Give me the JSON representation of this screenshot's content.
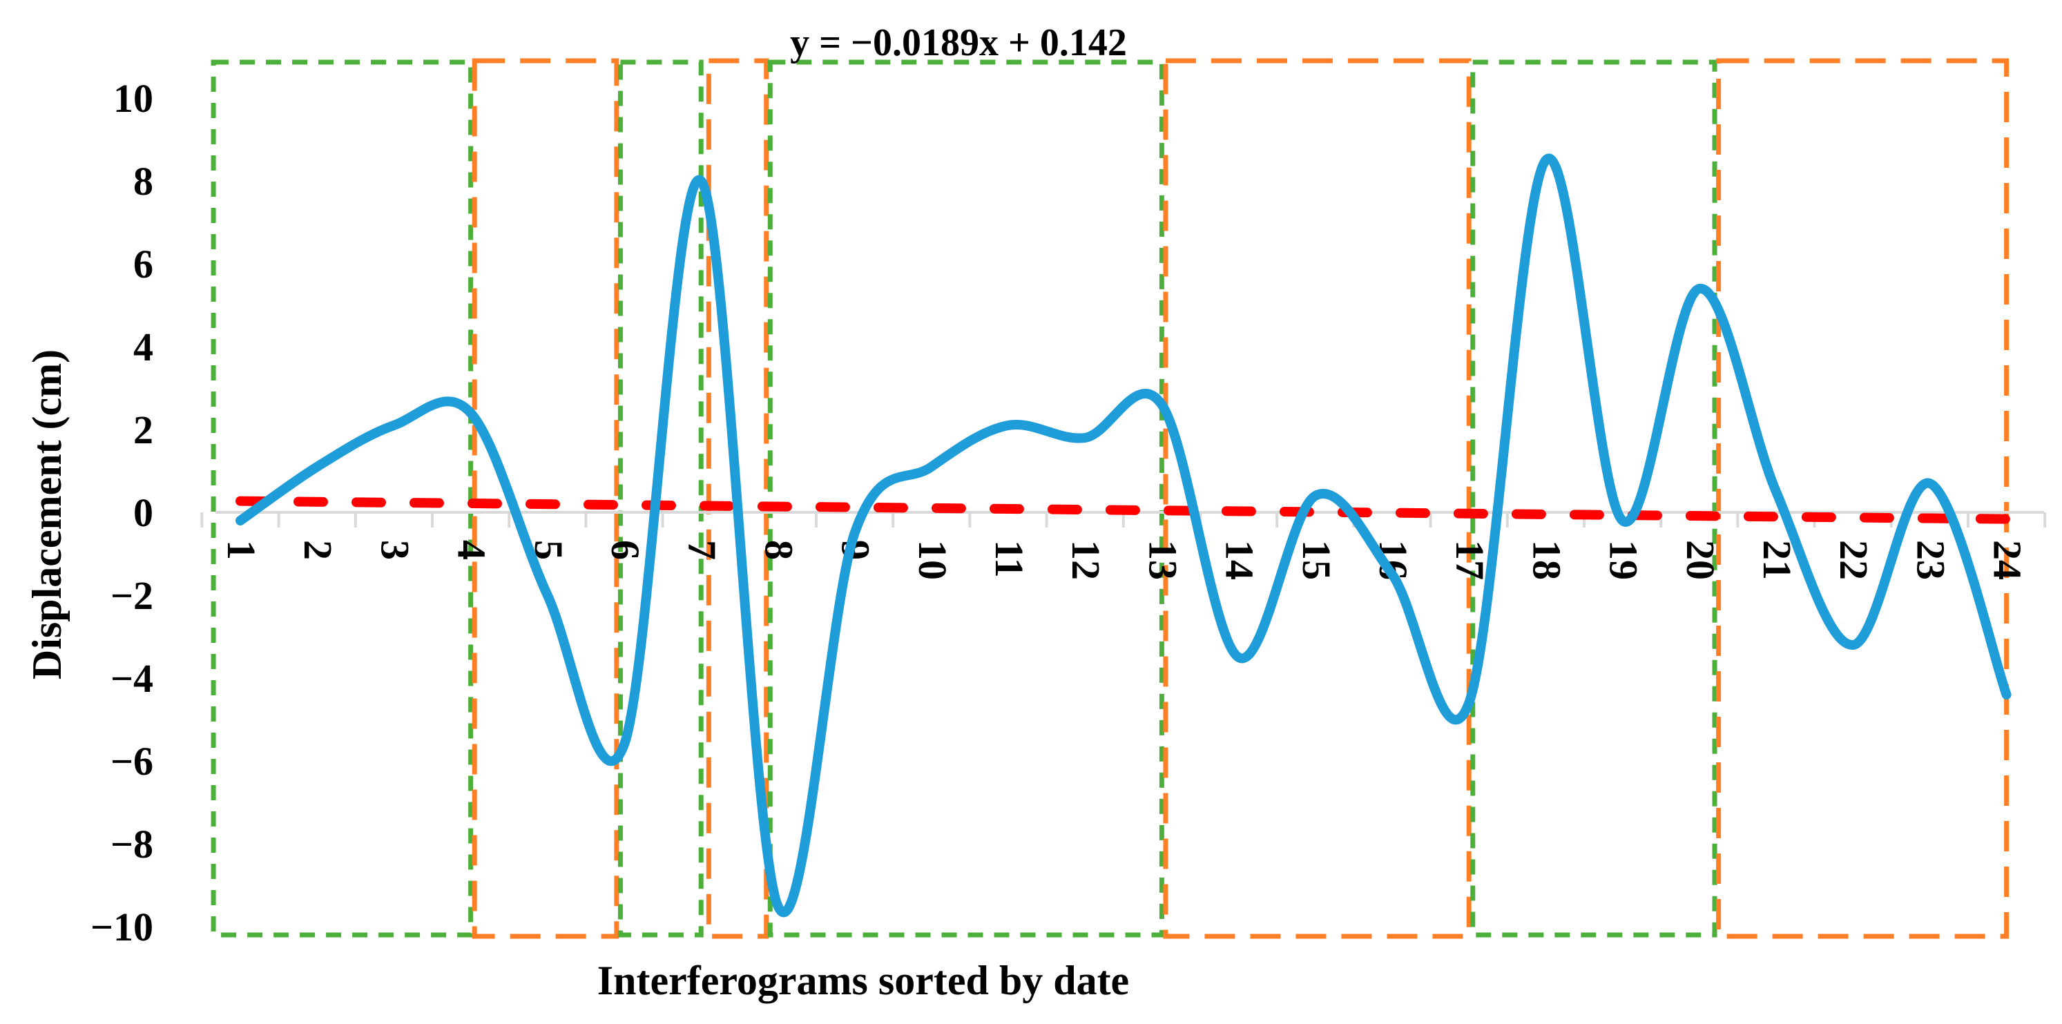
{
  "chart_data": {
    "type": "line",
    "title": "",
    "xlabel": "Interferograms sorted by date",
    "ylabel": "Displacement (cm)",
    "ylim": [
      -10,
      10
    ],
    "yticks": [
      10,
      8,
      6,
      4,
      2,
      0,
      -2,
      -4,
      -6,
      -8,
      -10
    ],
    "ytick_labels": [
      "10",
      "8",
      "6",
      "4",
      "2",
      "0",
      "−2",
      "−4",
      "−6",
      "−8",
      "−10"
    ],
    "categories": [
      "1",
      "2",
      "3",
      "4",
      "5",
      "6",
      "7",
      "8",
      "9",
      "10",
      "11",
      "12",
      "13",
      "14",
      "15",
      "16",
      "17",
      "18",
      "19",
      "20",
      "21",
      "22",
      "23",
      "24"
    ],
    "grid": false,
    "legend": null,
    "series": [
      {
        "name": "Displacement",
        "color": "#1f9dd9",
        "style": "smoothed-solid",
        "values": [
          -0.2,
          1.1,
          2.1,
          2.4,
          -2.0,
          -5.6,
          8.0,
          -9.5,
          -0.5,
          1.1,
          2.1,
          1.8,
          2.6,
          -3.5,
          0.4,
          -1.5,
          -4.6,
          8.5,
          -0.2,
          5.4,
          0.5,
          -3.2,
          0.7,
          -4.4
        ]
      },
      {
        "name": "Linear trend",
        "color": "#ff0000",
        "style": "dashed",
        "slope": -0.0189,
        "intercept": 0.142
      }
    ],
    "annotations": [
      {
        "text": "y = −0.0189x + 0.142",
        "type": "trendline-equation"
      }
    ],
    "regions": [
      {
        "color": "#4caf3a",
        "style": "short-dash",
        "from_category": 0.65,
        "to_category": 4.0
      },
      {
        "color": "#ff7f27",
        "style": "long-dash",
        "from_category": 4.05,
        "to_category": 5.9
      },
      {
        "color": "#4caf3a",
        "style": "short-dash",
        "from_category": 5.95,
        "to_category": 7.0
      },
      {
        "color": "#ff7f27",
        "style": "long-dash",
        "from_category": 7.1,
        "to_category": 7.85
      },
      {
        "color": "#4caf3a",
        "style": "short-dash",
        "from_category": 7.9,
        "to_category": 13.0
      },
      {
        "color": "#ff7f27",
        "style": "long-dash",
        "from_category": 13.05,
        "to_category": 17.0
      },
      {
        "color": "#4caf3a",
        "style": "short-dash",
        "from_category": 17.05,
        "to_category": 20.2
      },
      {
        "color": "#ff7f27",
        "style": "long-dash",
        "from_category": 20.25,
        "to_category": 24.0
      }
    ]
  },
  "colors": {
    "series": "#1f9dd9",
    "trend": "#ff0000",
    "green_box": "#4caf3a",
    "orange_box": "#ff7f27",
    "axis": "#d9d9d9"
  }
}
